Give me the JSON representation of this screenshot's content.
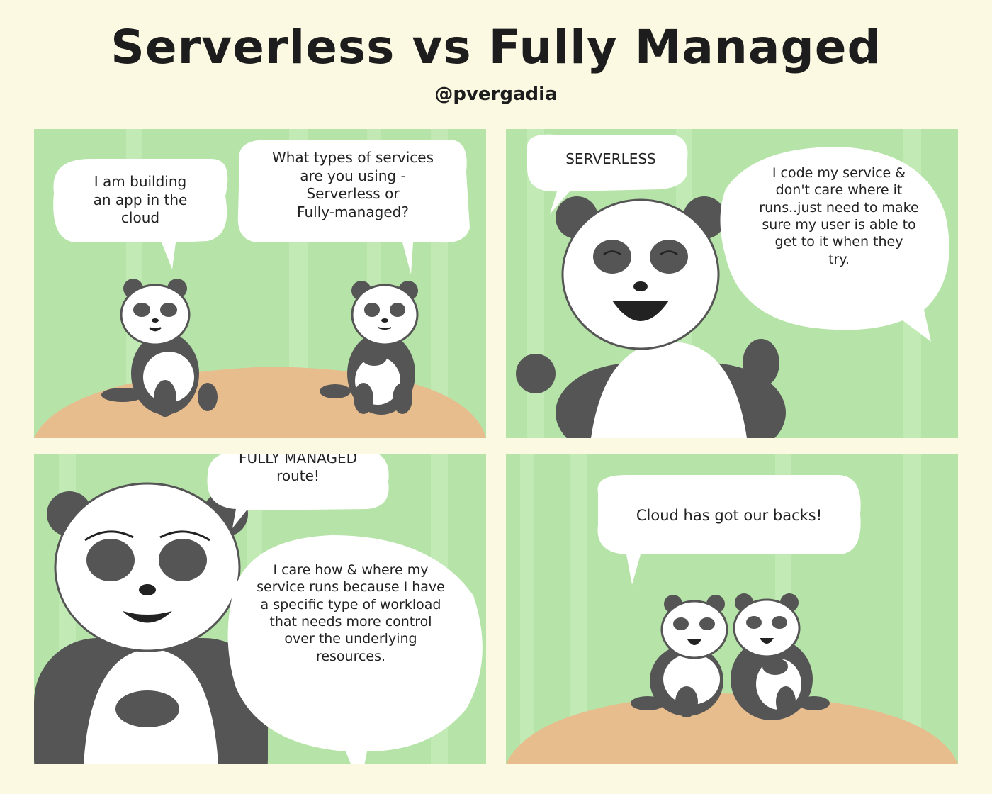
{
  "header": {
    "title": "Serverless vs Fully Managed",
    "byline": "@pvergadia"
  },
  "panels": [
    {
      "bubbles": [
        {
          "text": "I am building\nan app in the\ncloud"
        },
        {
          "text": "What types of services\nare you using -\nServerless or\nFully-managed?"
        }
      ]
    },
    {
      "bubbles": [
        {
          "text": "SERVERLESS"
        },
        {
          "text": "I code my service &\ndon't care where it\nruns..just need to make\nsure my user is able to\nget to it when they\ntry."
        }
      ]
    },
    {
      "bubbles": [
        {
          "text": "I am going\nFULLY MANAGED\nroute!"
        },
        {
          "text": "I care how & where my\nservice runs because I have\na specific type of workload\nthat needs more control\nover the underlying\nresources."
        }
      ]
    },
    {
      "bubbles": [
        {
          "text": "Cloud has got our backs!"
        }
      ]
    }
  ],
  "colors": {
    "background": "#fcf9e3",
    "panel": "#b6e3a8",
    "ground": "#e8bd8e",
    "fur_dark": "#555555",
    "fur_light": "#ffffff"
  }
}
